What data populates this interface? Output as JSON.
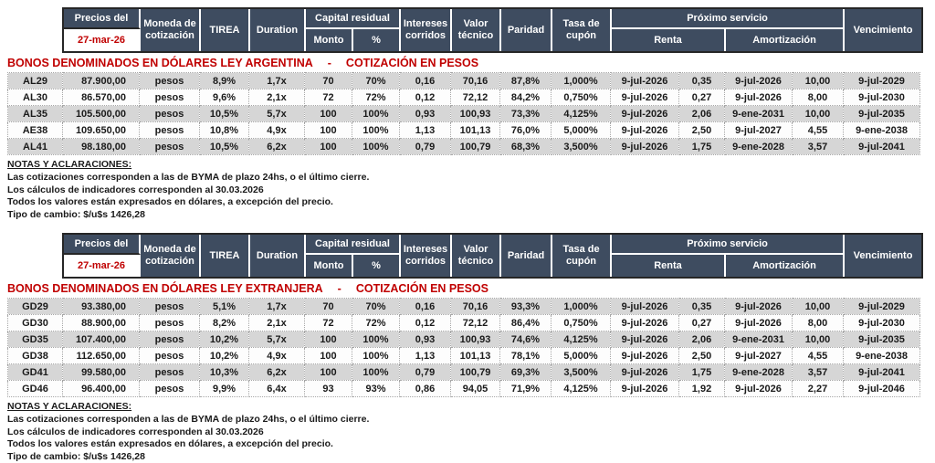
{
  "colors": {
    "header_bg": "#3e4c60",
    "accent_red": "#c00000",
    "row_gray": "#d6d6d6"
  },
  "header": {
    "precios_label": "Precios del",
    "date": "27-mar-26",
    "moneda": "Moneda de cotización",
    "tirea": "TIREA",
    "duration": "Duration",
    "capital_residual": "Capital residual",
    "monto": "Monto",
    "pct": "%",
    "intereses": "Intereses corridos",
    "valor_tecnico": "Valor técnico",
    "paridad": "Paridad",
    "tasa_cupon": "Tasa de cupón",
    "proximo_servicio": "Próximo servicio",
    "renta": "Renta",
    "amortizacion": "Amortización",
    "vencimiento": "Vencimiento"
  },
  "tables": [
    {
      "title": "BONOS DENOMINADOS EN DÓLARES LEY ARGENTINA",
      "dash": "-",
      "subtitle": "COTIZACIÓN EN PESOS",
      "rows": [
        [
          "AL29",
          "87.900,00",
          "pesos",
          "8,9%",
          "1,7x",
          "70",
          "70%",
          "0,16",
          "70,16",
          "87,8%",
          "1,000%",
          "9-jul-2026",
          "0,35",
          "9-jul-2026",
          "10,00",
          "9-jul-2029"
        ],
        [
          "AL30",
          "86.570,00",
          "pesos",
          "9,6%",
          "2,1x",
          "72",
          "72%",
          "0,12",
          "72,12",
          "84,2%",
          "0,750%",
          "9-jul-2026",
          "0,27",
          "9-jul-2026",
          "8,00",
          "9-jul-2030"
        ],
        [
          "AL35",
          "105.500,00",
          "pesos",
          "10,5%",
          "5,7x",
          "100",
          "100%",
          "0,93",
          "100,93",
          "73,3%",
          "4,125%",
          "9-jul-2026",
          "2,06",
          "9-ene-2031",
          "10,00",
          "9-jul-2035"
        ],
        [
          "AE38",
          "109.650,00",
          "pesos",
          "10,8%",
          "4,9x",
          "100",
          "100%",
          "1,13",
          "101,13",
          "76,0%",
          "5,000%",
          "9-jul-2026",
          "2,50",
          "9-jul-2027",
          "4,55",
          "9-ene-2038"
        ],
        [
          "AL41",
          "98.180,00",
          "pesos",
          "10,5%",
          "6,2x",
          "100",
          "100%",
          "0,79",
          "100,79",
          "68,3%",
          "3,500%",
          "9-jul-2026",
          "1,75",
          "9-ene-2028",
          "3,57",
          "9-jul-2041"
        ]
      ]
    },
    {
      "title": "BONOS DENOMINADOS EN DÓLARES LEY EXTRANJERA",
      "dash": "-",
      "subtitle": "COTIZACIÓN EN PESOS",
      "rows": [
        [
          "GD29",
          "93.380,00",
          "pesos",
          "5,1%",
          "1,7x",
          "70",
          "70%",
          "0,16",
          "70,16",
          "93,3%",
          "1,000%",
          "9-jul-2026",
          "0,35",
          "9-jul-2026",
          "10,00",
          "9-jul-2029"
        ],
        [
          "GD30",
          "88.900,00",
          "pesos",
          "8,2%",
          "2,1x",
          "72",
          "72%",
          "0,12",
          "72,12",
          "86,4%",
          "0,750%",
          "9-jul-2026",
          "0,27",
          "9-jul-2026",
          "8,00",
          "9-jul-2030"
        ],
        [
          "GD35",
          "107.400,00",
          "pesos",
          "10,2%",
          "5,7x",
          "100",
          "100%",
          "0,93",
          "100,93",
          "74,6%",
          "4,125%",
          "9-jul-2026",
          "2,06",
          "9-ene-2031",
          "10,00",
          "9-jul-2035"
        ],
        [
          "GD38",
          "112.650,00",
          "pesos",
          "10,2%",
          "4,9x",
          "100",
          "100%",
          "1,13",
          "101,13",
          "78,1%",
          "5,000%",
          "9-jul-2026",
          "2,50",
          "9-jul-2027",
          "4,55",
          "9-ene-2038"
        ],
        [
          "GD41",
          "99.580,00",
          "pesos",
          "10,3%",
          "6,2x",
          "100",
          "100%",
          "0,79",
          "100,79",
          "69,3%",
          "3,500%",
          "9-jul-2026",
          "1,75",
          "9-ene-2028",
          "3,57",
          "9-jul-2041"
        ],
        [
          "GD46",
          "96.400,00",
          "pesos",
          "9,9%",
          "6,4x",
          "93",
          "93%",
          "0,86",
          "94,05",
          "71,9%",
          "4,125%",
          "9-jul-2026",
          "1,92",
          "9-jul-2026",
          "2,27",
          "9-jul-2046"
        ]
      ]
    }
  ],
  "notes": {
    "heading": "NOTAS Y ACLARACIONES:",
    "lines": [
      "Las cotizaciones corresponden a las de BYMA de plazo 24hs, o el último cierre.",
      "Los cálculos de indicadores corresponden al 30.03.2026",
      "Todos los valores están expresados en dólares, a excepción del precio.",
      "Tipo de cambio: $/u$s 1426,28"
    ]
  }
}
